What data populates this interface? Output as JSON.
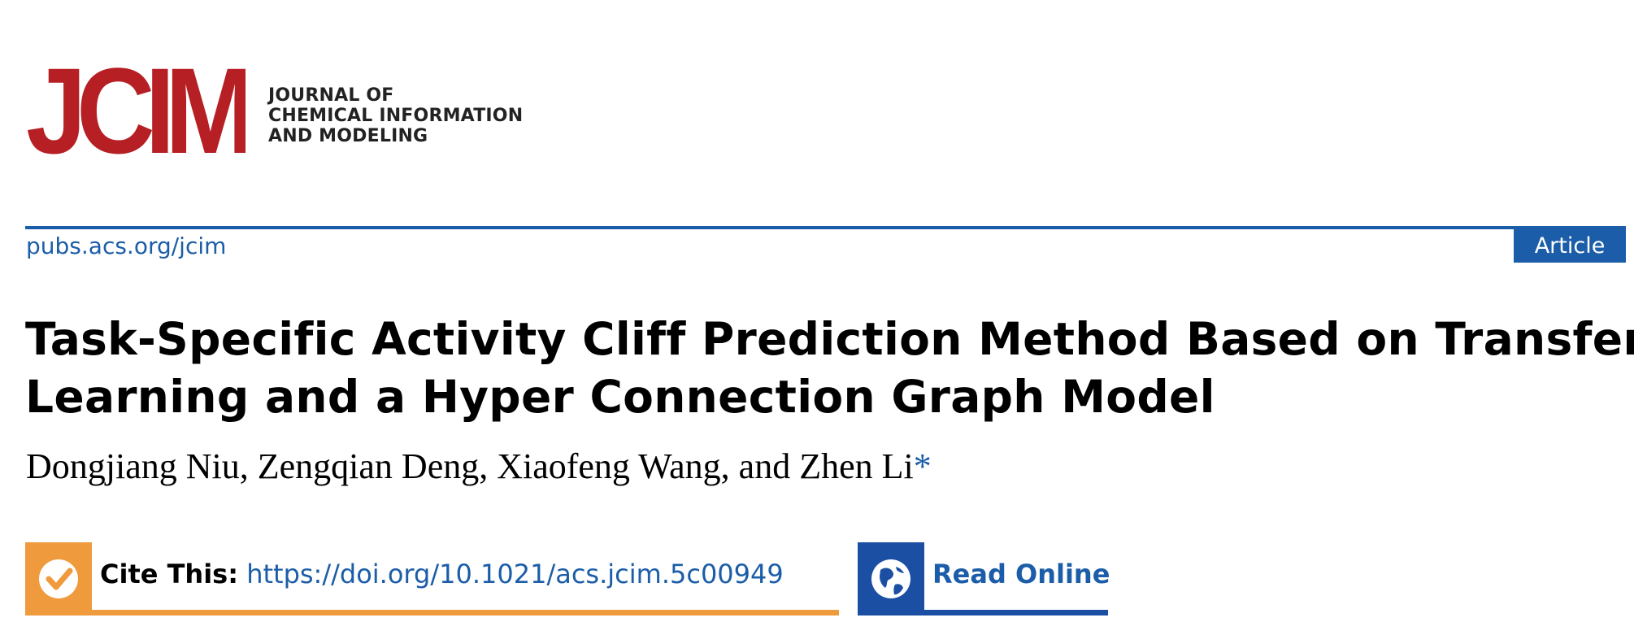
{
  "header": {
    "logo_text": "JCIM",
    "journal_name_lines": [
      "JOURNAL OF",
      "CHEMICAL INFORMATION",
      "AND MODELING"
    ],
    "site_link": "pubs.acs.org/jcim",
    "article_type": "Article"
  },
  "article": {
    "title_lines": [
      "Task-Specific Activity Cliff Prediction Method Based on Transfer",
      "Learning and a Hyper Connection Graph Model"
    ],
    "authors": "Dongjiang Niu, Zengqian Deng, Xiaofeng Wang, and Zhen Li",
    "corresponding_mark": "*"
  },
  "actions": {
    "cite_label": "Cite This:",
    "cite_doi": "https://doi.org/10.1021/acs.jcim.5c00949",
    "read_online_label": "Read Online"
  },
  "colors": {
    "brand_red": "#b61f24",
    "link_blue": "#1b5da8",
    "cite_orange": "#ef9a3c",
    "read_blue": "#1b4fa3"
  },
  "icons": {
    "cite": "check-circle-icon",
    "read": "globe-icon"
  }
}
